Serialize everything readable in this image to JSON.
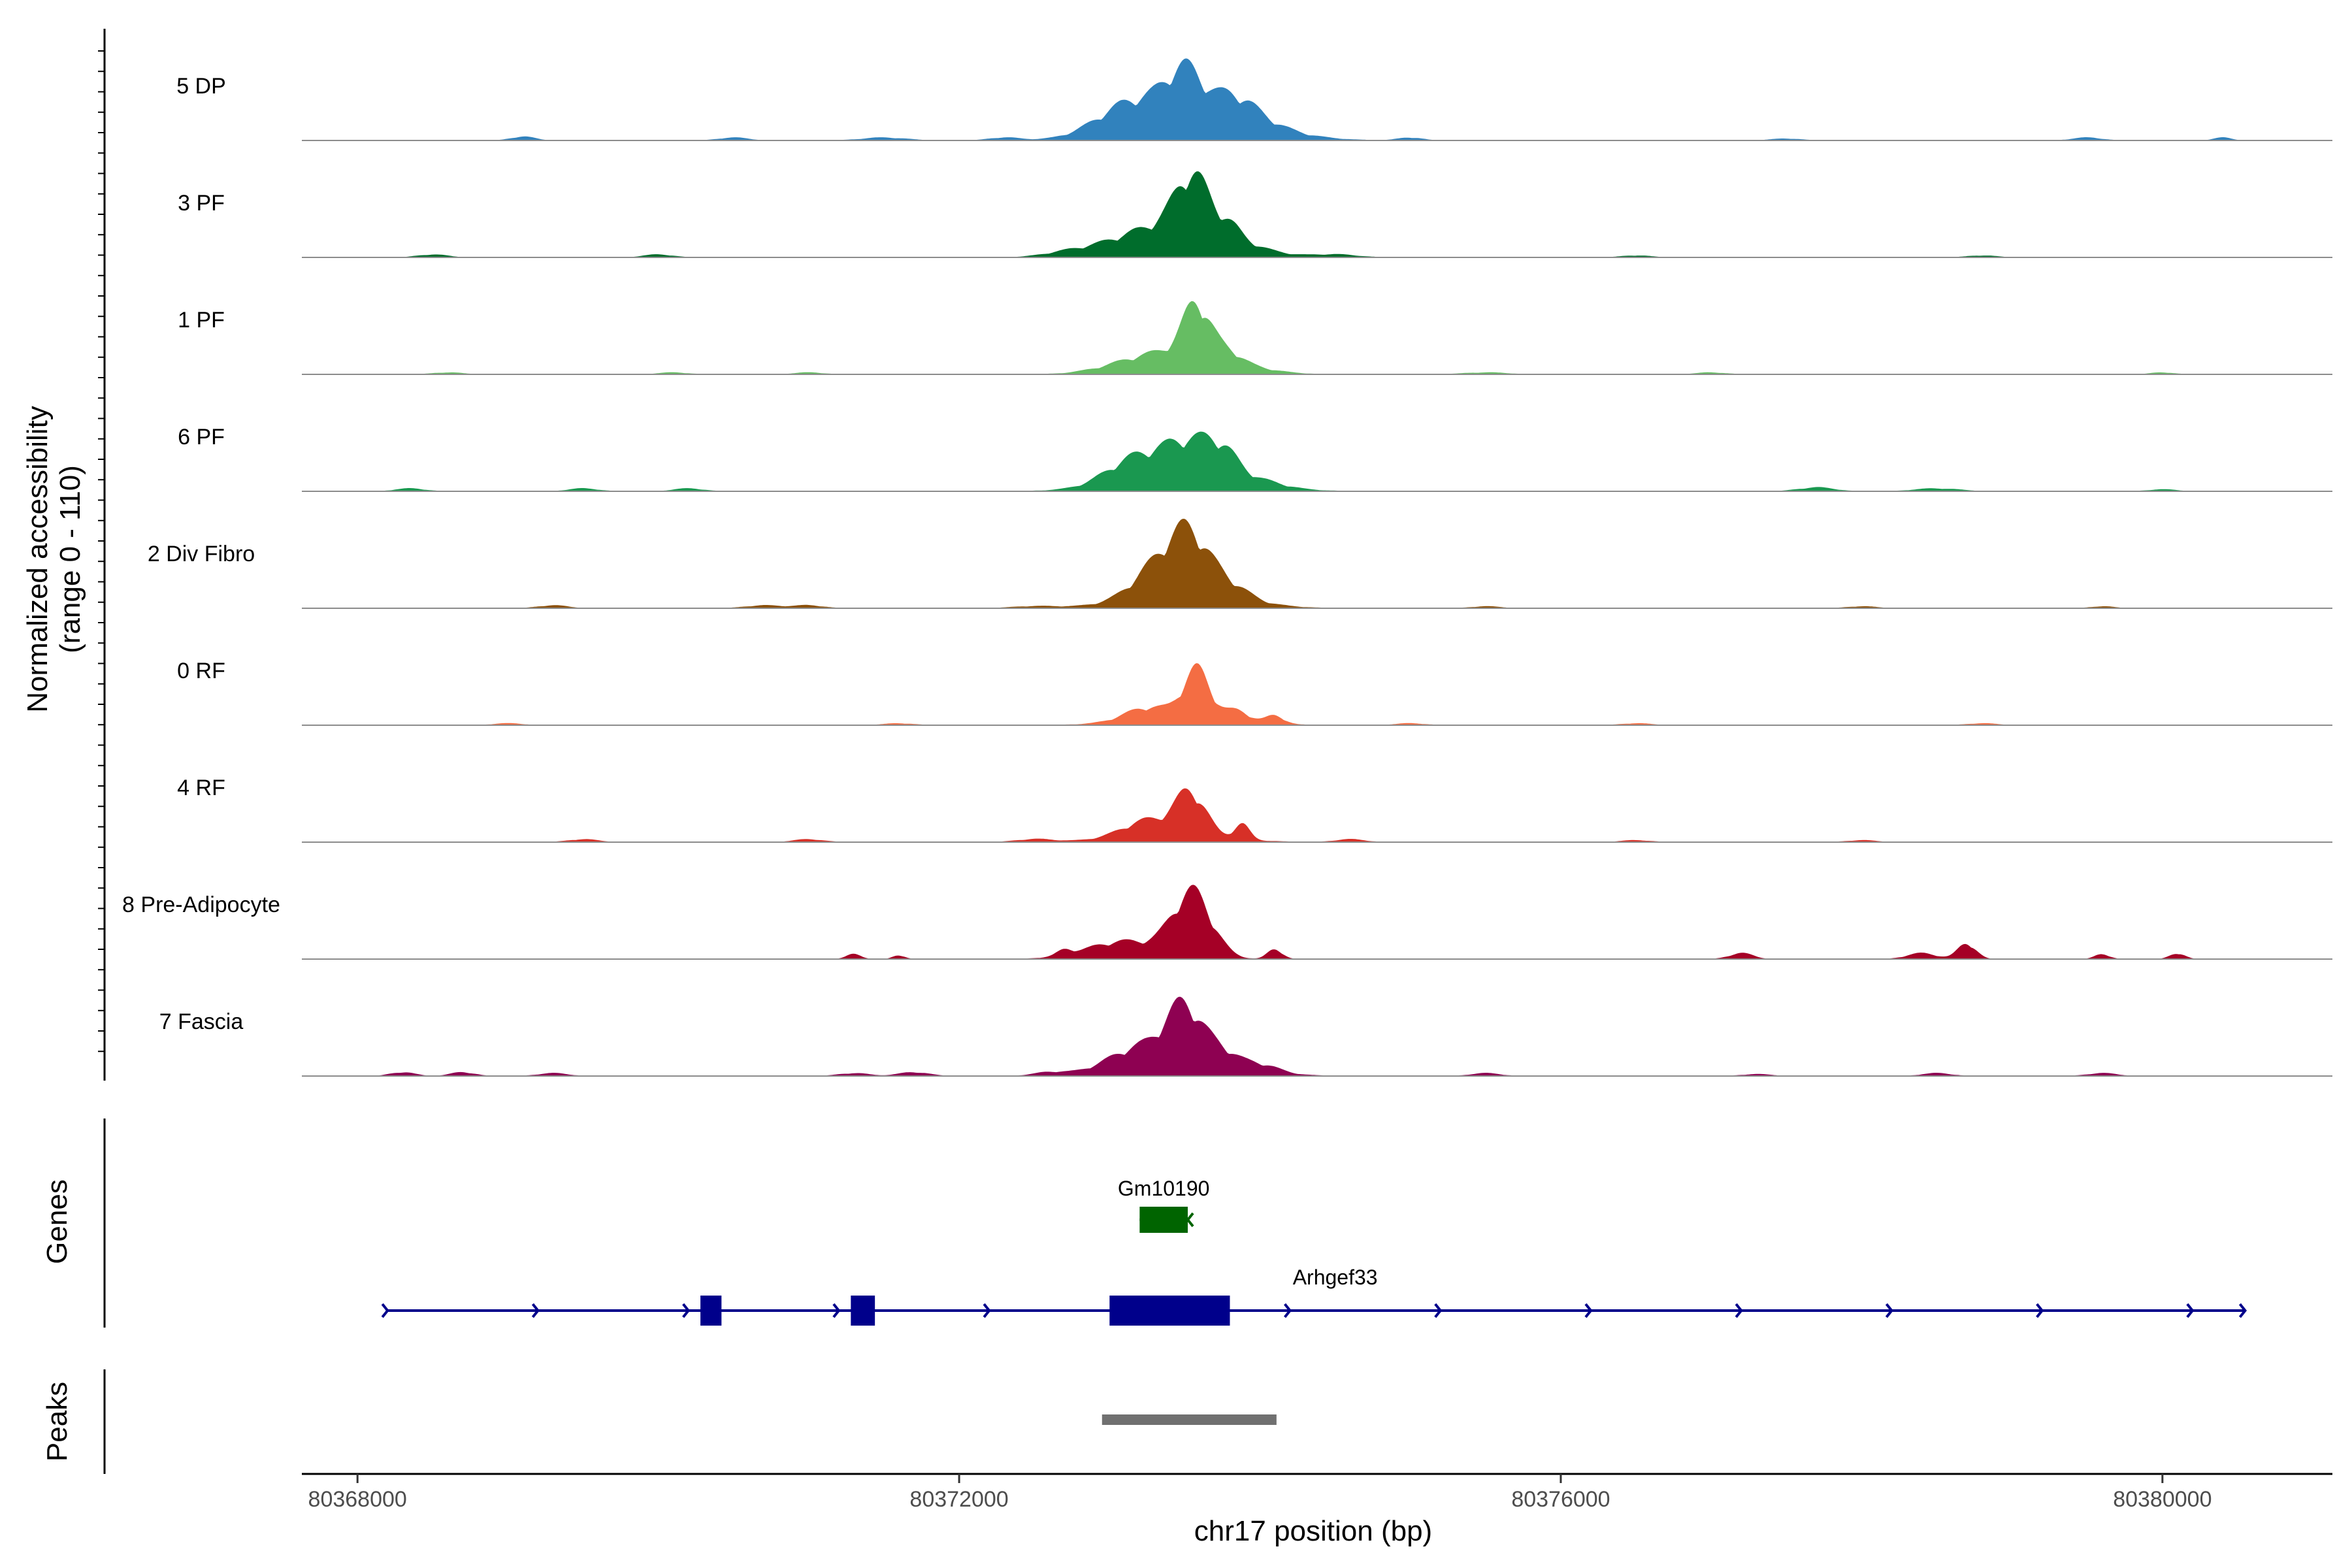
{
  "chart_data": {
    "type": "area",
    "title": "",
    "ylabel_line1": "Normalized accessibility",
    "ylabel_line2": "(range 0 - 110)",
    "yrange": [
      0,
      110
    ],
    "xlabel": "chr17 position (bp)",
    "xlim": [
      80367630,
      80381130
    ],
    "xticks": [
      80368000,
      80372000,
      80376000,
      80380000
    ],
    "xtick_labels": [
      "80368000",
      "80372000",
      "80376000",
      "80380000"
    ],
    "genes_label": "Genes",
    "peaks_label": "Peaks",
    "series": [
      {
        "name": "5 DP",
        "color": "#3182bd",
        "peaks": [
          [
            80373130,
            25,
            220
          ],
          [
            80373500,
            40,
            120
          ],
          [
            80373830,
            18,
            120
          ],
          [
            80373600,
            30,
            400
          ],
          [
            80374000,
            5,
            150
          ],
          [
            80369100,
            4,
            80
          ],
          [
            80370500,
            3,
            100
          ],
          [
            80371500,
            3,
            150
          ],
          [
            80372300,
            3,
            100
          ],
          [
            80375000,
            3,
            80
          ],
          [
            80377500,
            2,
            100
          ],
          [
            80379500,
            3,
            100
          ],
          [
            80380400,
            3,
            60
          ]
        ]
      },
      {
        "name": "3 PF",
        "color": "#006d2c",
        "peaks": [
          [
            80373150,
            15,
            280
          ],
          [
            80373550,
            50,
            110
          ],
          [
            80373800,
            10,
            70
          ],
          [
            80373580,
            30,
            300
          ],
          [
            80368500,
            3,
            100
          ],
          [
            80370000,
            3,
            100
          ],
          [
            80372700,
            3,
            150
          ],
          [
            80374500,
            3,
            150
          ],
          [
            80376500,
            2,
            100
          ],
          [
            80378800,
            2,
            100
          ]
        ]
      },
      {
        "name": "1 PF",
        "color": "#66bd63",
        "peaks": [
          [
            80373200,
            10,
            250
          ],
          [
            80373580,
            50,
            90
          ],
          [
            80373800,
            8,
            80
          ],
          [
            80373580,
            20,
            300
          ],
          [
            80368600,
            2,
            100
          ],
          [
            80370100,
            2,
            100
          ],
          [
            80371000,
            2,
            100
          ],
          [
            80375500,
            2,
            150
          ],
          [
            80377000,
            2,
            100
          ],
          [
            80380000,
            2,
            80
          ]
        ]
      },
      {
        "name": "6 PF",
        "color": "#1a9850",
        "peaks": [
          [
            80373150,
            22,
            180
          ],
          [
            80373540,
            35,
            180
          ],
          [
            80373750,
            18,
            100
          ],
          [
            80373500,
            15,
            400
          ],
          [
            80374000,
            5,
            150
          ],
          [
            80368350,
            3,
            100
          ],
          [
            80369500,
            3,
            100
          ],
          [
            80370200,
            3,
            100
          ],
          [
            80377700,
            4,
            120
          ],
          [
            80378500,
            3,
            150
          ],
          [
            80380000,
            2,
            100
          ]
        ]
      },
      {
        "name": "2 Div Fibro",
        "color": "#8c510a",
        "peaks": [
          [
            80373300,
            25,
            150
          ],
          [
            80373530,
            55,
            130
          ],
          [
            80373800,
            12,
            120
          ],
          [
            80373500,
            18,
            350
          ],
          [
            80369300,
            3,
            100
          ],
          [
            80370700,
            3,
            120
          ],
          [
            80371000,
            3,
            100
          ],
          [
            80372500,
            2,
            150
          ],
          [
            80375500,
            2,
            100
          ],
          [
            80378000,
            2,
            100
          ],
          [
            80379600,
            2,
            80
          ]
        ]
      },
      {
        "name": "0 RF",
        "color": "#f46d43",
        "peaks": [
          [
            80373250,
            12,
            150
          ],
          [
            80373580,
            48,
            90
          ],
          [
            80373850,
            10,
            80
          ],
          [
            80374100,
            8,
            60
          ],
          [
            80373500,
            8,
            350
          ],
          [
            80369000,
            2,
            100
          ],
          [
            80371600,
            2,
            100
          ],
          [
            80375000,
            2,
            100
          ],
          [
            80376500,
            2,
            100
          ],
          [
            80378800,
            2,
            100
          ]
        ]
      },
      {
        "name": "4 RF",
        "color": "#d73027",
        "peaks": [
          [
            80373250,
            15,
            160
          ],
          [
            80373540,
            42,
            100
          ],
          [
            80373880,
            15,
            50
          ],
          [
            80373400,
            8,
            350
          ],
          [
            80372500,
            3,
            120
          ],
          [
            80369500,
            3,
            100
          ],
          [
            80371000,
            3,
            100
          ],
          [
            80374600,
            3,
            100
          ],
          [
            80376500,
            2,
            100
          ],
          [
            80378000,
            2,
            100
          ]
        ]
      },
      {
        "name": "8 Pre-Adipocyte",
        "color": "#a50026",
        "peaks": [
          [
            80373100,
            18,
            250
          ],
          [
            80373550,
            65,
            130
          ],
          [
            80374100,
            10,
            50
          ],
          [
            80371300,
            5,
            50
          ],
          [
            80371600,
            4,
            40
          ],
          [
            80372700,
            5,
            50
          ],
          [
            80377200,
            6,
            80
          ],
          [
            80378400,
            6,
            100
          ],
          [
            80378700,
            16,
            60
          ],
          [
            80379600,
            5,
            50
          ],
          [
            80380100,
            6,
            50
          ]
        ]
      },
      {
        "name": "7 Fascia",
        "color": "#8e0152",
        "peaks": [
          [
            80373200,
            20,
            200
          ],
          [
            80373500,
            55,
            120
          ],
          [
            80373750,
            15,
            100
          ],
          [
            80373450,
            12,
            400
          ],
          [
            80374000,
            8,
            120
          ],
          [
            80368300,
            4,
            80
          ],
          [
            80368700,
            4,
            80
          ],
          [
            80369300,
            3,
            100
          ],
          [
            80371300,
            3,
            100
          ],
          [
            80371700,
            4,
            100
          ],
          [
            80372600,
            3,
            100
          ],
          [
            80375500,
            3,
            100
          ],
          [
            80377300,
            2,
            100
          ],
          [
            80378500,
            3,
            100
          ],
          [
            80379600,
            3,
            100
          ]
        ]
      }
    ],
    "genes": [
      {
        "name": "Gm10190",
        "start": 80373200,
        "end": 80373520,
        "strand": "-",
        "color": "#006400",
        "exons": [
          [
            80373200,
            80373520
          ]
        ]
      },
      {
        "name": "Arhgef33",
        "start": 80368200,
        "end": 80380550,
        "strand": "+",
        "color": "#00008b",
        "exons": [
          [
            80370280,
            80370420
          ],
          [
            80371280,
            80371440
          ],
          [
            80373000,
            80373800
          ]
        ]
      }
    ],
    "peaks_regions": [
      {
        "start": 80372950,
        "end": 80374110,
        "color": "#707070"
      }
    ]
  }
}
